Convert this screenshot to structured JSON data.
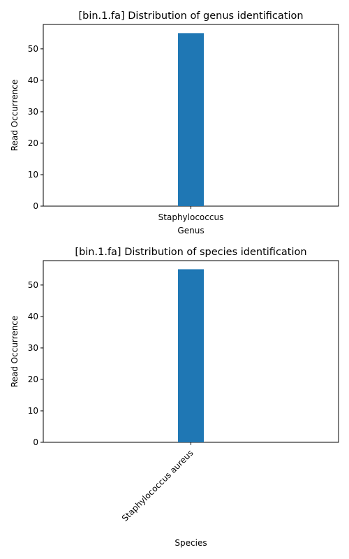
{
  "chart_data": [
    {
      "type": "bar",
      "title": "[bin.1.fa] Distribution of genus identification",
      "xlabel": "Genus",
      "ylabel": "Read Occurrence",
      "categories": [
        "Staphylococcus"
      ],
      "values": [
        55
      ],
      "ylim": [
        0,
        57.75
      ],
      "yticks": [
        0,
        10,
        20,
        30,
        40,
        50
      ],
      "bar_color": "#1f77b4",
      "tick_label_rotation": 0,
      "grid": false,
      "legend": "none"
    },
    {
      "type": "bar",
      "title": "[bin.1.fa] Distribution of species identification",
      "xlabel": "Species",
      "ylabel": "Read Occurrence",
      "categories": [
        "Staphylococcus aureus"
      ],
      "values": [
        55
      ],
      "ylim": [
        0,
        57.75
      ],
      "yticks": [
        0,
        10,
        20,
        30,
        40,
        50
      ],
      "bar_color": "#1f77b4",
      "tick_label_rotation": -45,
      "grid": false,
      "legend": "none"
    }
  ]
}
